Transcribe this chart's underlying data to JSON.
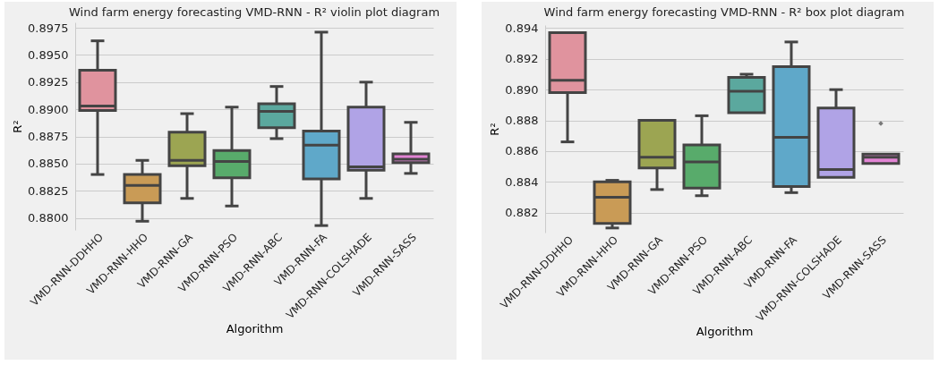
{
  "chart_data": [
    {
      "type": "box",
      "title": "Wind farm energy forecasting VMD-RNN -  R² violin plot diagram",
      "xlabel": "Algorithm",
      "ylabel": "R²",
      "categories": [
        "VMD-RNN-DDHHO",
        "VMD-RNN-HHO",
        "VMD-RNN-GA",
        "VMD-RNN-PSO",
        "VMD-RNN-ABC",
        "VMD-RNN-FA",
        "VMD-RNN-COLSHADE",
        "VMD-RNN-SASS"
      ],
      "colors": [
        "#e0939e",
        "#c99b56",
        "#9ca552",
        "#58ab6b",
        "#5ba89e",
        "#5fa8c9",
        "#b0a3e6",
        "#e284d4"
      ],
      "boxes": [
        {
          "low": 0.884,
          "q1": 0.8899,
          "median": 0.8903,
          "q3": 0.8936,
          "high": 0.8963
        },
        {
          "low": 0.8797,
          "q1": 0.8814,
          "median": 0.883,
          "q3": 0.884,
          "high": 0.8853
        },
        {
          "low": 0.8818,
          "q1": 0.8848,
          "median": 0.8853,
          "q3": 0.8879,
          "high": 0.8896
        },
        {
          "low": 0.8811,
          "q1": 0.8837,
          "median": 0.8852,
          "q3": 0.8862,
          "high": 0.8902
        },
        {
          "low": 0.8873,
          "q1": 0.8883,
          "median": 0.8898,
          "q3": 0.8905,
          "high": 0.8921
        },
        {
          "low": 0.8793,
          "q1": 0.8836,
          "median": 0.8867,
          "q3": 0.888,
          "high": 0.8971
        },
        {
          "low": 0.8818,
          "q1": 0.8844,
          "median": 0.8847,
          "q3": 0.8902,
          "high": 0.8925
        },
        {
          "low": 0.8841,
          "q1": 0.8851,
          "median": 0.8854,
          "q3": 0.8859,
          "high": 0.8888
        }
      ],
      "ylim": [
        0.8789,
        0.898
      ],
      "yticks": [
        {
          "value": 0.88,
          "label": "0.8800"
        },
        0.8825,
        {
          "value": 0.885,
          "label": "0.8850"
        },
        0.8875,
        {
          "value": 0.89,
          "label": "0.8900"
        },
        0.8925,
        {
          "value": 0.895,
          "label": "0.8950"
        },
        0.8975
      ],
      "grid": "y",
      "legend": false
    },
    {
      "type": "box",
      "title": "Wind farm energy forecasting VMD-RNN -  R² box plot diagram",
      "xlabel": "Algorithm",
      "ylabel": "R²",
      "categories": [
        "VMD-RNN-DDHHO",
        "VMD-RNN-HHO",
        "VMD-RNN-GA",
        "VMD-RNN-PSO",
        "VMD-RNN-ABC",
        "VMD-RNN-FA",
        "VMD-RNN-COLSHADE",
        "VMD-RNN-SASS"
      ],
      "colors": [
        "#e0939e",
        "#c99b56",
        "#9ca552",
        "#58ab6b",
        "#5ba89e",
        "#5fa8c9",
        "#b0a3e6",
        "#e284d4"
      ],
      "boxes": [
        {
          "low": 0.8866,
          "q1": 0.8898,
          "median": 0.8906,
          "q3": 0.8937,
          "high": 0.8937
        },
        {
          "low": 0.881,
          "q1": 0.8813,
          "median": 0.883,
          "q3": 0.884,
          "high": 0.8841
        },
        {
          "low": 0.8835,
          "q1": 0.8849,
          "median": 0.8856,
          "q3": 0.888,
          "high": 0.888
        },
        {
          "low": 0.8831,
          "q1": 0.8836,
          "median": 0.8853,
          "q3": 0.8864,
          "high": 0.8883
        },
        {
          "low": 0.8885,
          "q1": 0.8885,
          "median": 0.8899,
          "q3": 0.8908,
          "high": 0.891
        },
        {
          "low": 0.8833,
          "q1": 0.8837,
          "median": 0.8869,
          "q3": 0.8915,
          "high": 0.8931
        },
        {
          "low": 0.8843,
          "q1": 0.8843,
          "median": 0.8848,
          "q3": 0.8888,
          "high": 0.89
        },
        {
          "low": 0.8852,
          "q1": 0.8852,
          "median": 0.8856,
          "q3": 0.8858,
          "high": 0.8858,
          "outliers": [
            0.8878
          ]
        }
      ],
      "ylim": [
        0.8807,
        0.8942
      ],
      "yticks": [
        0.882,
        0.884,
        0.886,
        0.888,
        {
          "value": 0.89,
          "label": "0.890"
        },
        0.892,
        0.894
      ],
      "grid": "y",
      "legend": false
    }
  ]
}
